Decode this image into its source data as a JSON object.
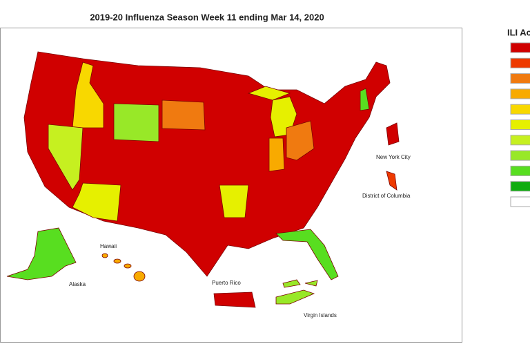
{
  "title": "2019-20 Influenza Season Week 11 ending Mar 14, 2020",
  "legend": {
    "title": "ILI Ac",
    "colors": [
      "#d00000",
      "#ee3a00",
      "#f07a10",
      "#f8aa00",
      "#f8d800",
      "#e6f000",
      "#c6f020",
      "#98e828",
      "#58de20",
      "#10ac10",
      "#ffffff"
    ]
  },
  "labels": {
    "new_york_city": "New York City",
    "district_of_columbia": "District of Columbia",
    "hawaii": "Hawaii",
    "alaska": "Alaska",
    "puerto_rico": "Puerto Rico",
    "virgin_islands": "Virgin Islands"
  }
}
